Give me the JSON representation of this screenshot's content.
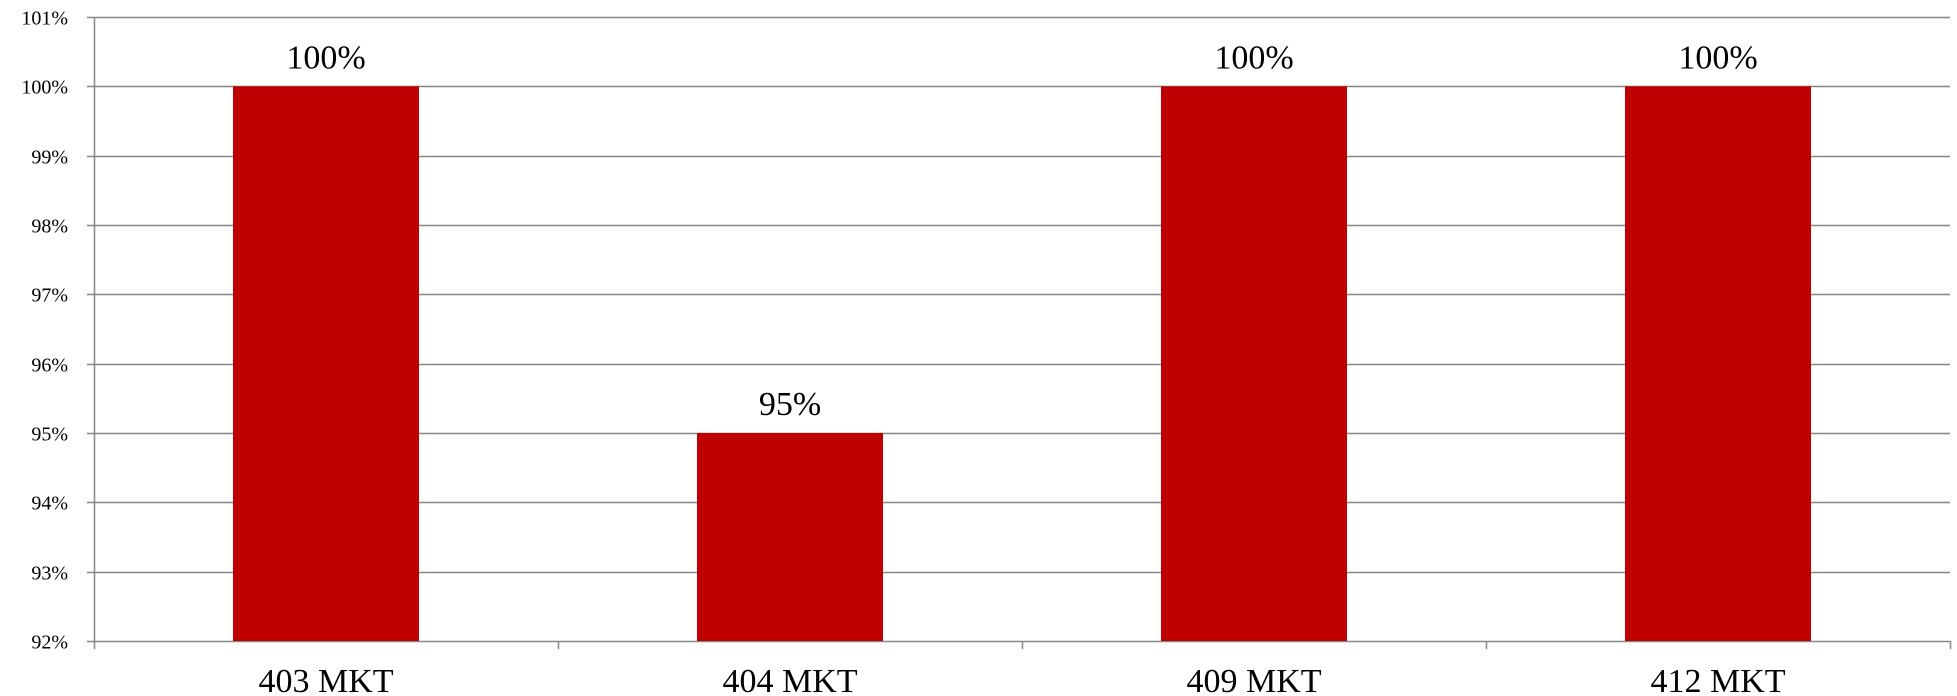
{
  "chart_data": {
    "type": "bar",
    "categories": [
      "403 MKT",
      "404 MKT",
      "409 MKT",
      "412 MKT"
    ],
    "values": [
      100,
      95,
      100,
      100
    ],
    "data_labels": [
      "100%",
      "95%",
      "100%",
      "100%"
    ],
    "ylim": [
      92,
      101
    ],
    "yticks": [
      92,
      93,
      94,
      95,
      96,
      97,
      98,
      99,
      100,
      101
    ],
    "ytick_labels": [
      "92%",
      "93%",
      "94%",
      "95%",
      "96%",
      "97%",
      "98%",
      "99%",
      "100%",
      "101%"
    ],
    "grid": true,
    "legend": "none",
    "bar_color": "#c00000",
    "grid_color": "#868686",
    "title": "",
    "xlabel": "",
    "ylabel": ""
  }
}
